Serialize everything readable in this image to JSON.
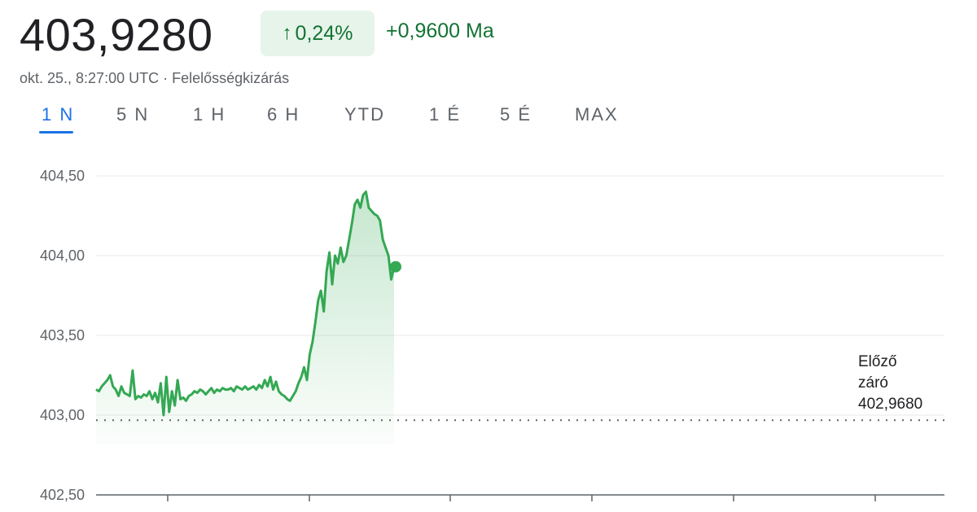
{
  "header": {
    "price": "403,9280",
    "change_percent": "0,24%",
    "change_arrow_icon": "arrow-up-icon",
    "change_abs": "+0,9600 Ma",
    "timestamp": "okt. 25., 8:27:00 UTC",
    "separator": "·",
    "disclaimer": "Felelősségkizárás"
  },
  "colors": {
    "positive": "#137333",
    "positive_bg": "#e6f4ea",
    "line": "#34a853",
    "accent": "#1a73e8"
  },
  "tabs": [
    {
      "label": "1 N",
      "active": true
    },
    {
      "label": "5 N",
      "active": false
    },
    {
      "label": "1 H",
      "active": false
    },
    {
      "label": "6 H",
      "active": false
    },
    {
      "label": "YTD",
      "active": false
    },
    {
      "label": "1 É",
      "active": false
    },
    {
      "label": "5 É",
      "active": false
    },
    {
      "label": "MAX",
      "active": false
    }
  ],
  "chart_data": {
    "type": "area",
    "yticks": [
      "404,50",
      "404,00",
      "403,50",
      "403,00",
      "402,50"
    ],
    "ylim": [
      402.5,
      404.5
    ],
    "grid": true,
    "previous_close": {
      "label_line1": "Előző",
      "label_line2": "záró",
      "value": 402.968,
      "value_label": "402,9680"
    },
    "last_point": 403.93,
    "series": [
      {
        "values": [
          403.16,
          403.15,
          403.18,
          403.2,
          403.22,
          403.25,
          403.18,
          403.16,
          403.12,
          403.18,
          403.14,
          403.13,
          403.12,
          403.28,
          403.1,
          403.12,
          403.11,
          403.13,
          403.12,
          403.15,
          403.1,
          403.14,
          403.08,
          403.2,
          403.0,
          403.24,
          403.02,
          403.15,
          403.06,
          403.22,
          403.1,
          403.11,
          403.09,
          403.12,
          403.13,
          403.15,
          403.14,
          403.16,
          403.15,
          403.13,
          403.15,
          403.17,
          403.14,
          403.16,
          403.15,
          403.17,
          403.16,
          403.16,
          403.17,
          403.15,
          403.18,
          403.17,
          403.16,
          403.18,
          403.16,
          403.17,
          403.18,
          403.16,
          403.19,
          403.17,
          403.22,
          403.18,
          403.24,
          403.16,
          403.21,
          403.15,
          403.13,
          403.12,
          403.1,
          403.09,
          403.12,
          403.15,
          403.2,
          403.24,
          403.3,
          403.22,
          403.38,
          403.46,
          403.58,
          403.72,
          403.78,
          403.65,
          403.9,
          404.02,
          403.82,
          404.0,
          403.95,
          404.05,
          403.96,
          404.0,
          404.1,
          404.2,
          404.32,
          404.35,
          404.3,
          404.38,
          404.4,
          404.3,
          404.28,
          404.26,
          404.25,
          404.22,
          404.1,
          404.05,
          404.0,
          403.85,
          403.93
        ]
      }
    ]
  }
}
